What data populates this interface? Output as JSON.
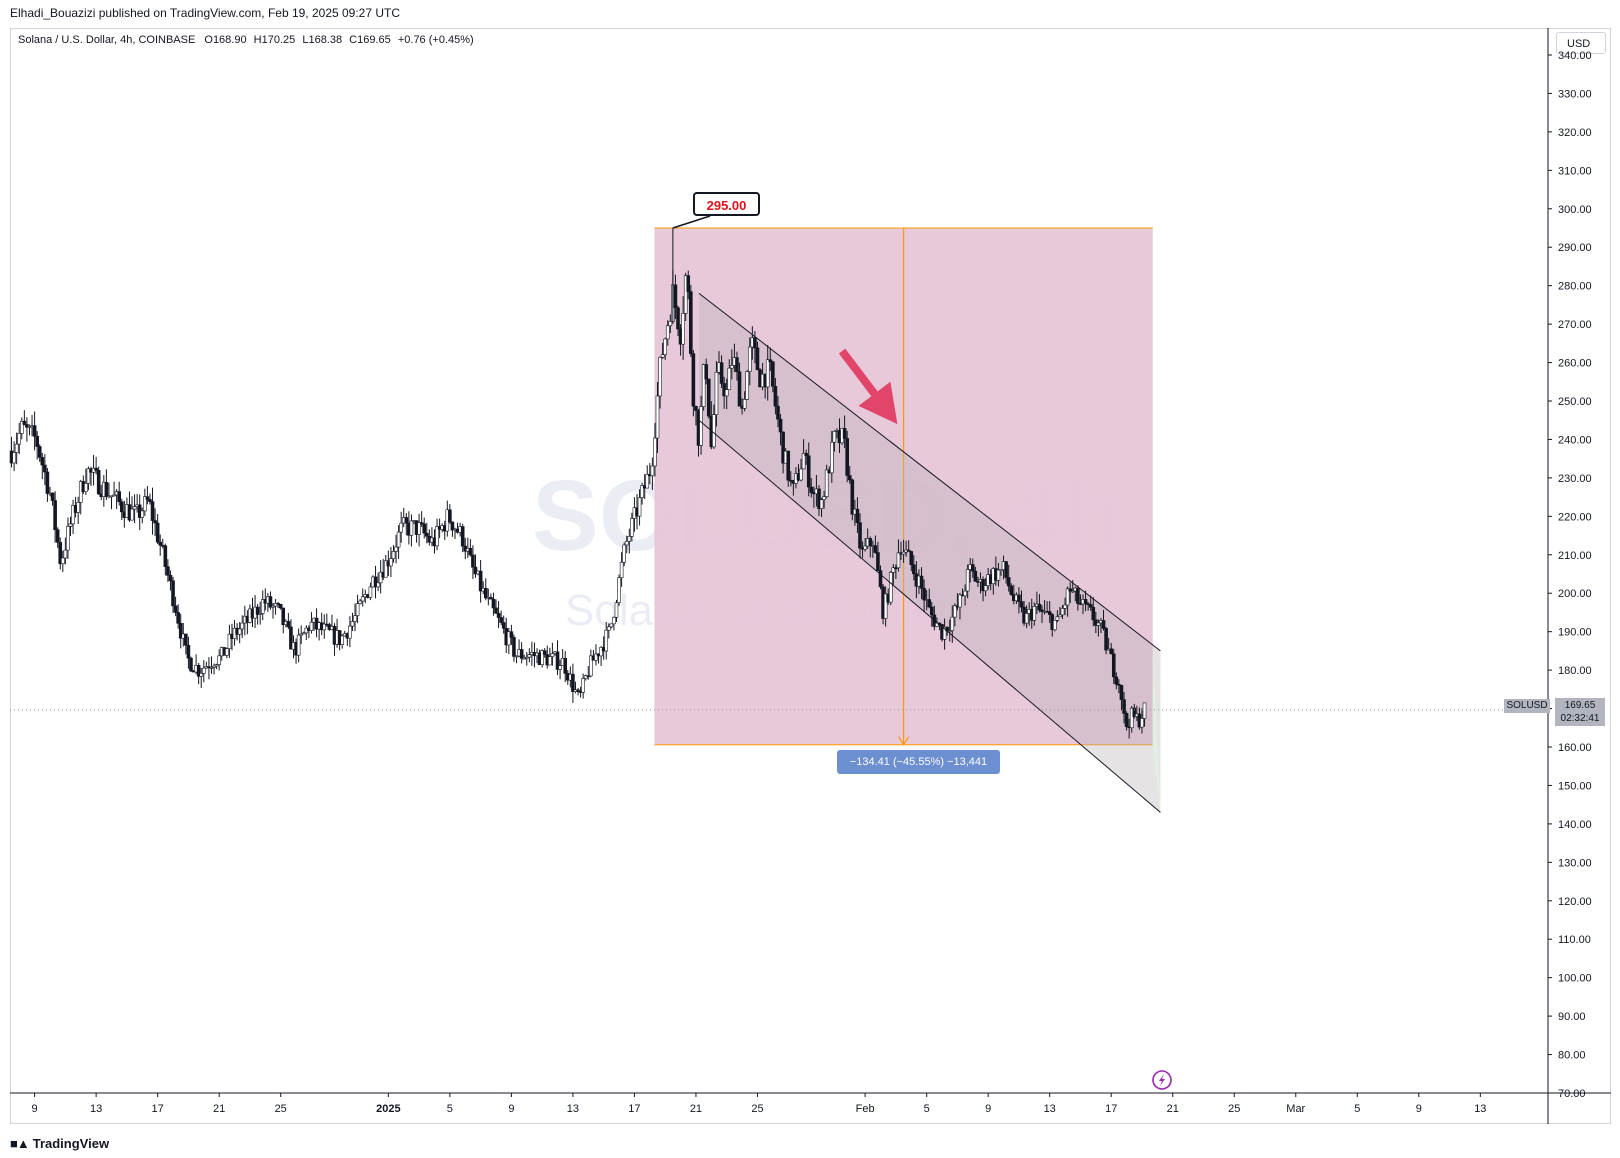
{
  "header": {
    "published": "Elhadi_Bouazizi published on TradingView.com, Feb 19, 2025 09:27 UTC"
  },
  "legend": {
    "symbol_desc": "Solana / U.S. Dollar, 4h, COINBASE",
    "o_label": "O",
    "o_value": "168.90",
    "h_label": "H",
    "h_value": "170.25",
    "l_label": "L",
    "l_value": "168.38",
    "c_label": "C",
    "c_value": "169.65",
    "change": "+0.76 (+0.45%)"
  },
  "currency": "USD",
  "watermark": {
    "symbol": "SOLUSD, 4h",
    "name": "Solana / U.S. Dollar"
  },
  "last_price": {
    "symbol": "SOLUSD",
    "price": "169.65",
    "countdown": "02:32:41"
  },
  "annotations": {
    "peak_label": "295.00",
    "measure_label": "−134.41 (−45.55%) −13,441"
  },
  "footer": {
    "brand": "TradingView"
  },
  "colors": {
    "range_fill": "#e7c6d8",
    "range_border": "#ff9800",
    "channel_line": "#131722",
    "arrow": "#e2456a",
    "target_fill": "#dff2e1",
    "candle": "#131722"
  },
  "chart_data": {
    "type": "candlestick",
    "title": "Solana / U.S. Dollar, 4h, COINBASE",
    "ylim": [
      70,
      340
    ],
    "y_ticks": [
      340,
      330,
      320,
      310,
      300,
      290,
      280,
      270,
      260,
      250,
      240,
      230,
      220,
      210,
      200,
      190,
      180,
      170,
      160,
      150,
      140,
      130,
      120,
      110,
      100,
      90,
      80,
      70
    ],
    "y_tick_labels": [
      "340.00",
      "330.00",
      "320.00",
      "310.00",
      "300.00",
      "290.00",
      "280.00",
      "270.00",
      "260.00",
      "250.00",
      "240.00",
      "230.00",
      "220.00",
      "210.00",
      "200.00",
      "190.00",
      "180.00",
      "170.00",
      "160.00",
      "150.00",
      "140.00",
      "130.00",
      "120.00",
      "110.00",
      "100.00",
      "90.00",
      "80.00",
      "70.00"
    ],
    "x_ticks": [
      "9",
      "13",
      "17",
      "21",
      "25",
      "2025",
      "5",
      "9",
      "13",
      "17",
      "21",
      "25",
      "Feb",
      "5",
      "9",
      "13",
      "17",
      "21",
      "25",
      "Mar",
      "5",
      "9",
      "13"
    ],
    "x_tick_days": [
      -23,
      -19,
      -15,
      -11,
      -7,
      0,
      4,
      8,
      12,
      16,
      20,
      24,
      31,
      35,
      39,
      43,
      47,
      51,
      55,
      59,
      63,
      67,
      71
    ],
    "x_range_days": [
      -24.6,
      75.4
    ],
    "price_path": {
      "days": [
        -24.5,
        -23.8,
        -22.9,
        -22.0,
        -21.3,
        -20.6,
        -19.6,
        -18.4,
        -17.4,
        -16.4,
        -15.6,
        -14.8,
        -13.8,
        -13.1,
        -12.3,
        -11.3,
        -10.9,
        -10.1,
        -9.1,
        -8.1,
        -7.1,
        -6.1,
        -5.1,
        -4.1,
        -3.1,
        -2.1,
        -1.1,
        -0.1,
        0.9,
        1.9,
        2.9,
        3.9,
        4.9,
        5.4,
        6.4,
        7.4,
        8.3,
        9.4,
        10.4,
        11.4,
        12.4,
        13.0,
        13.5,
        14.4,
        15.4,
        16.2,
        17.1,
        17.7,
        18.5,
        19.0,
        19.4,
        19.8,
        20.2,
        20.6,
        21.0,
        21.4,
        22.0,
        22.4,
        23.0,
        23.6,
        24.2,
        24.8,
        25.6,
        26.3,
        27.0,
        27.6,
        28.2,
        29.0,
        29.6,
        30.2,
        30.8,
        31.5,
        32.2,
        32.9,
        33.3,
        33.8,
        34.5,
        35.2,
        36.0,
        36.6,
        37.2,
        37.8,
        38.5,
        39.3,
        40.0,
        40.7,
        41.4,
        42.0,
        42.8,
        43.5,
        44.3,
        45.0,
        45.8,
        46.3,
        46.8,
        47.2,
        47.6,
        47.9,
        48.3,
        48.8,
        49.2
      ],
      "values": [
        237,
        243,
        240,
        226,
        208,
        219,
        232,
        227,
        223,
        220,
        224,
        212,
        196,
        183,
        180,
        183,
        183,
        189,
        193,
        198,
        195,
        185,
        192,
        190,
        188,
        194,
        203,
        208,
        217,
        217,
        213,
        220,
        214,
        207,
        198,
        191,
        184,
        184,
        183,
        182,
        172,
        180,
        184,
        190,
        212,
        222,
        233,
        260,
        278,
        268,
        285,
        253,
        240,
        262,
        238,
        258,
        252,
        262,
        248,
        265,
        256,
        258,
        238,
        226,
        236,
        226,
        224,
        240,
        240,
        222,
        210,
        214,
        195,
        207,
        213,
        209,
        203,
        195,
        190,
        193,
        198,
        206,
        202,
        205,
        206,
        198,
        193,
        196,
        194,
        192,
        201,
        197,
        194,
        191,
        185,
        180,
        176,
        165,
        168,
        167,
        170
      ]
    },
    "range_box": {
      "day_start": 17.3,
      "day_end": 49.7,
      "price_top": 295.0,
      "price_bottom": 160.59
    },
    "measure_change": -134.41,
    "measure_change_pct": -45.55,
    "measure_ticks": -13441,
    "peak": {
      "day": 18.5,
      "price": 295.0
    },
    "channel": {
      "upper": [
        [
          20.2,
          278
        ],
        [
          50.2,
          185
        ]
      ],
      "lower": [
        [
          20.2,
          245
        ],
        [
          50.2,
          143
        ]
      ]
    },
    "last_price": 169.65,
    "arrow": {
      "from": [
        29.5,
        263
      ],
      "to": [
        33.1,
        244
      ]
    }
  }
}
